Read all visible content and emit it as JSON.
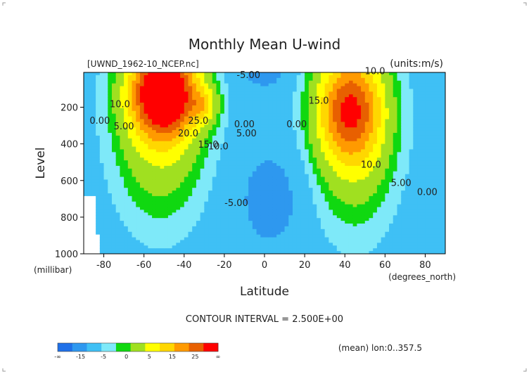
{
  "chart_data": {
    "type": "heatmap",
    "title": "Monthly Mean U-wind",
    "subtitle_left": "[UWND_1962-10_NCEP.nc]",
    "subtitle_right": "(units:m/s)",
    "xlabel": "Latitude",
    "x_unit": "(degrees_north)",
    "ylabel": "Level",
    "y_unit": "(millibar)",
    "xlim": [
      -90,
      90
    ],
    "ylim": [
      1000,
      10
    ],
    "x_ticks": [
      {
        "value": -80,
        "label": "-80"
      },
      {
        "value": -60,
        "label": "-60"
      },
      {
        "value": -40,
        "label": "-40"
      },
      {
        "value": -20,
        "label": "-20"
      },
      {
        "value": 0,
        "label": "0"
      },
      {
        "value": 20,
        "label": "20"
      },
      {
        "value": 40,
        "label": "40"
      },
      {
        "value": 60,
        "label": "60"
      },
      {
        "value": 80,
        "label": "80"
      }
    ],
    "y_ticks": [
      {
        "value": 200,
        "label": "200"
      },
      {
        "value": 400,
        "label": "400"
      },
      {
        "value": 600,
        "label": "600"
      },
      {
        "value": 800,
        "label": "800"
      },
      {
        "value": 1000,
        "label": "1000"
      }
    ],
    "contour_interval_text": "CONTOUR INTERVAL = 2.500E+00",
    "footer_right": "(mean) lon:0..357.5",
    "jets": [
      {
        "lat": -50,
        "level": 120,
        "peak_ms": 35,
        "width_deg": 16,
        "depth": 230
      },
      {
        "lat": -30,
        "level": 190,
        "peak_ms": 10,
        "width_deg": 7,
        "depth": 100
      },
      {
        "lat": 42,
        "level": 210,
        "peak_ms": 22,
        "width_deg": 16,
        "depth": 280
      }
    ],
    "contour_labels": [
      {
        "text": "10.0",
        "lat": -72,
        "level": 200
      },
      {
        "text": "5.00",
        "lat": -70,
        "level": 320
      },
      {
        "text": "0.00",
        "lat": -82,
        "level": 290
      },
      {
        "text": "25.0",
        "lat": -33,
        "level": 290
      },
      {
        "text": "20.0",
        "lat": -38,
        "level": 360
      },
      {
        "text": "15.0",
        "lat": -28,
        "level": 420
      },
      {
        "text": "10.0",
        "lat": -23,
        "level": 430
      },
      {
        "text": "0.00",
        "lat": -10,
        "level": 310
      },
      {
        "text": "5.00",
        "lat": -9,
        "level": 360
      },
      {
        "text": "-5.00",
        "lat": -8,
        "level": 40
      },
      {
        "text": "-5.00",
        "lat": -14,
        "level": 740
      },
      {
        "text": "0.00",
        "lat": 16,
        "level": 310
      },
      {
        "text": "15.0",
        "lat": 27,
        "level": 180
      },
      {
        "text": "10.0",
        "lat": 55,
        "level": 20
      },
      {
        "text": "10.0",
        "lat": 53,
        "level": 530
      },
      {
        "text": "5.00",
        "lat": 68,
        "level": 630
      },
      {
        "text": "0.00",
        "lat": 81,
        "level": 680
      }
    ],
    "colorbar": {
      "labels": [
        "-∞",
        "-15",
        "-5",
        "0",
        "5",
        "15",
        "25",
        "∞"
      ],
      "colors": [
        "#1f70e8",
        "#2e98ef",
        "#3fc0f5",
        "#7ee9f9",
        "#10d810",
        "#a0e020",
        "#ffff00",
        "#ffd700",
        "#ff9a00",
        "#e86000",
        "#ff0000"
      ],
      "levels": [
        -10,
        -5,
        0,
        2.5,
        5,
        10,
        15,
        20,
        25,
        30
      ]
    }
  }
}
